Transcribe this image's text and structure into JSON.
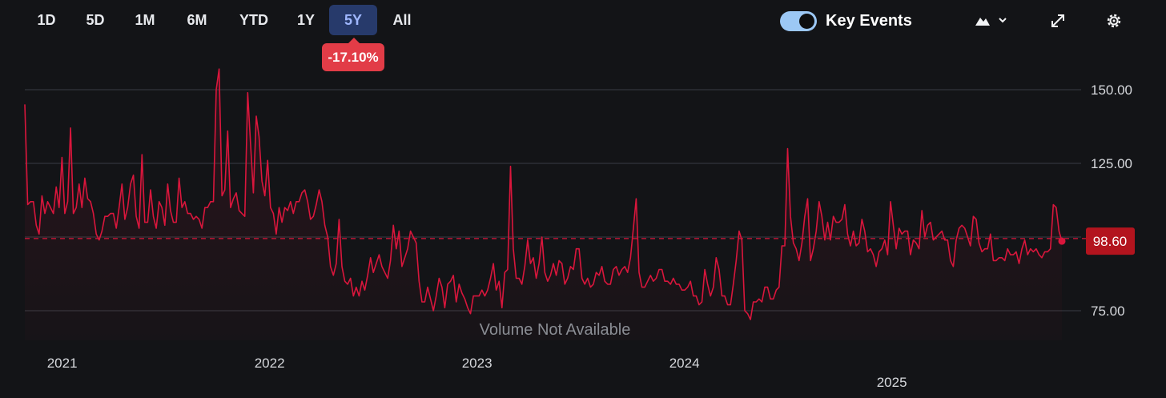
{
  "toolbar": {
    "ranges": [
      "1D",
      "5D",
      "1M",
      "6M",
      "YTD",
      "1Y",
      "5Y",
      "All"
    ],
    "active_range": "5Y",
    "change_badge": "-17.10%",
    "key_events_label": "Key Events",
    "key_events_enabled": true,
    "icons": [
      "mountain-chart-icon",
      "chevron-down-icon",
      "expand-icon",
      "gear-icon"
    ]
  },
  "colors": {
    "background": "#131417",
    "line": "#d9163c",
    "badge": "#e23c47",
    "last_price_badge": "#b3141e",
    "active_tab": "#273a6b",
    "grid": "#3a3d44"
  },
  "chart_data": {
    "type": "line",
    "ylim": [
      68,
      160
    ],
    "yticks": [
      "150.00",
      "125.00",
      "100.00",
      "75.00"
    ],
    "ytick_values": [
      150,
      125,
      100,
      75
    ],
    "xticks": [
      "2021",
      "2022",
      "2023",
      "2024",
      "2025"
    ],
    "xtick_positions": [
      2021.0,
      2022.0,
      2023.0,
      2024.0,
      2025.0
    ],
    "last_price": 98.6,
    "last_price_label": "98.60",
    "reference_value": 99.5,
    "volume_note": "Volume Not Available",
    "x_start": 2020.82,
    "x_end": 2025.82,
    "values": [
      145,
      111,
      112,
      112,
      104,
      101,
      114,
      108,
      112,
      110,
      108,
      117,
      110,
      127,
      108,
      112,
      137,
      108,
      110,
      118,
      110,
      120,
      113,
      112,
      108,
      101,
      99,
      102,
      107,
      107,
      108,
      108,
      103,
      110,
      118,
      106,
      110,
      118,
      121,
      107,
      103,
      128,
      105,
      105,
      116,
      107,
      103,
      112,
      110,
      104,
      118,
      109,
      105,
      105,
      120,
      110,
      112,
      108,
      108,
      106,
      107,
      106,
      103,
      110,
      110,
      112,
      112,
      150,
      157,
      114,
      116,
      136,
      110,
      113,
      115,
      109,
      108,
      107,
      149,
      132,
      115,
      141,
      134,
      119,
      114,
      126,
      110,
      108,
      101,
      110,
      105,
      110,
      109,
      112,
      108,
      112,
      112,
      115,
      116,
      112,
      106,
      107,
      111,
      116,
      112,
      104,
      100,
      90,
      87,
      91,
      106,
      90,
      85,
      84,
      86,
      80,
      83,
      80,
      85,
      82,
      87,
      93,
      88,
      91,
      94,
      90,
      88,
      86,
      92,
      104,
      96,
      102,
      90,
      93,
      96,
      102,
      100,
      98,
      85,
      78,
      78,
      83,
      79,
      75,
      80,
      86,
      83,
      76,
      84,
      85,
      87,
      78,
      84,
      81,
      79,
      76,
      74,
      80,
      80,
      80,
      82,
      80,
      82,
      86,
      91,
      82,
      85,
      76,
      88,
      89,
      124,
      96,
      86,
      86,
      84,
      90,
      99,
      91,
      93,
      86,
      91,
      100,
      88,
      85,
      87,
      91,
      87,
      92,
      91,
      84,
      86,
      90,
      89,
      96,
      96,
      86,
      84,
      86,
      83,
      84,
      88,
      87,
      90,
      85,
      84,
      84,
      89,
      90,
      87,
      89,
      90,
      88,
      93,
      103,
      113,
      88,
      83,
      83,
      85,
      87,
      85,
      86,
      89,
      89,
      85,
      85,
      84,
      86,
      84,
      84,
      82,
      82,
      83,
      85,
      80,
      80,
      77,
      78,
      89,
      84,
      80,
      83,
      93,
      89,
      80,
      80,
      77,
      77,
      84,
      92,
      102,
      99,
      75,
      74,
      72,
      78,
      78,
      79,
      78,
      83,
      83,
      79,
      79,
      82,
      83,
      97,
      97,
      130,
      107,
      98,
      96,
      92,
      98,
      107,
      113,
      92,
      96,
      102,
      112,
      107,
      99,
      105,
      99,
      107,
      105,
      105,
      106,
      111,
      101,
      97,
      102,
      97,
      98,
      106,
      102,
      95,
      96,
      94,
      90,
      95,
      96,
      99,
      94,
      112,
      104,
      96,
      103,
      101,
      102,
      102,
      94,
      99,
      98,
      96,
      109,
      100,
      104,
      105,
      99,
      100,
      101,
      102,
      99,
      99,
      92,
      90,
      99,
      103,
      104,
      103,
      100,
      97,
      107,
      106,
      98,
      95,
      96,
      96,
      101,
      92,
      92,
      93,
      93,
      92,
      96,
      94,
      94,
      95,
      91,
      96,
      99,
      94,
      96,
      95,
      96,
      94,
      93,
      95,
      95,
      96,
      111,
      110,
      102,
      98.6
    ]
  }
}
